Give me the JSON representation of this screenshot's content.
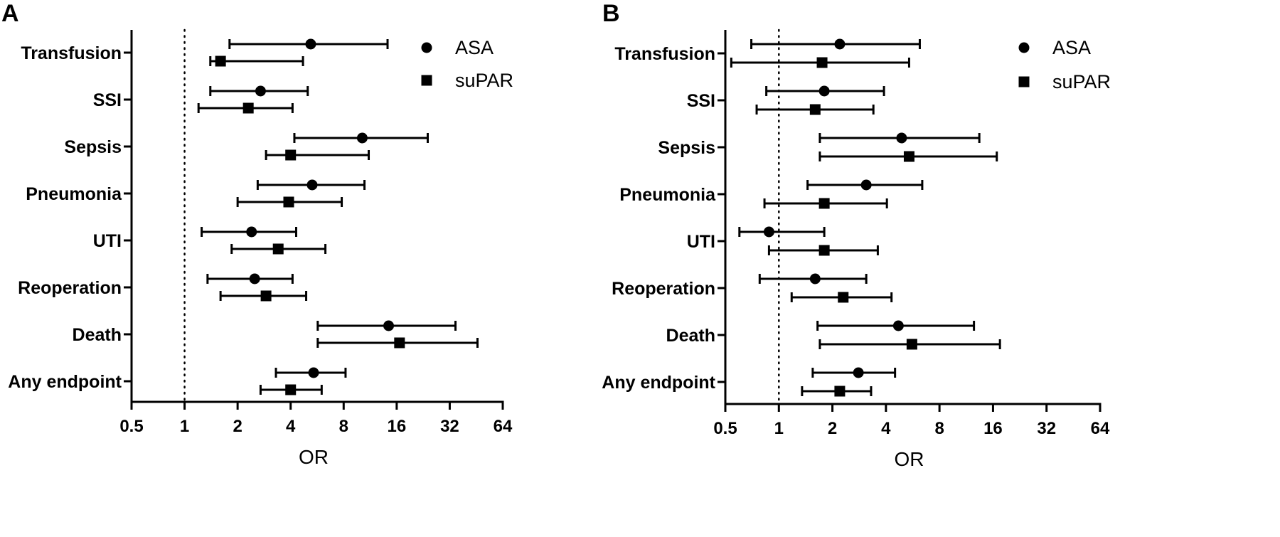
{
  "chart_data": [
    {
      "type": "forest",
      "panel": "A",
      "x_scale": "log2",
      "xlabel": "OR",
      "xlim": [
        0.5,
        64
      ],
      "xticks": [
        "0.5",
        "1",
        "2",
        "4",
        "8",
        "16",
        "32",
        "64"
      ],
      "reference_line": 1,
      "legend": {
        "placement": "top-right",
        "entries": [
          "ASA",
          "suPAR"
        ]
      },
      "categories": [
        "Transfusion",
        "SSI",
        "Sepsis",
        "Pneumonia",
        "UTI",
        "Reoperation",
        "Death",
        "Any endpoint"
      ],
      "series": [
        {
          "name": "ASA",
          "marker": "circle",
          "values": [
            5.2,
            2.7,
            10.2,
            5.3,
            2.4,
            2.5,
            14.4,
            5.4
          ],
          "ci_low": [
            1.8,
            1.4,
            4.2,
            2.6,
            1.25,
            1.35,
            5.7,
            3.3
          ],
          "ci_high": [
            14.2,
            5.0,
            24.0,
            10.5,
            4.3,
            4.1,
            34.5,
            8.2
          ]
        },
        {
          "name": "suPAR",
          "marker": "square",
          "values": [
            1.6,
            2.3,
            4.0,
            3.9,
            3.4,
            2.9,
            16.6,
            4.0
          ],
          "ci_low": [
            1.4,
            1.2,
            2.9,
            2.0,
            1.85,
            1.6,
            5.7,
            2.7
          ],
          "ci_high": [
            4.7,
            4.1,
            11.1,
            7.8,
            6.3,
            4.9,
            46.0,
            6.0
          ]
        }
      ]
    },
    {
      "type": "forest",
      "panel": "B",
      "x_scale": "log2",
      "xlabel": "OR",
      "xlim": [
        0.5,
        64
      ],
      "xticks": [
        "0.5",
        "1",
        "2",
        "4",
        "8",
        "16",
        "32",
        "64"
      ],
      "reference_line": 1,
      "legend": {
        "placement": "top-right",
        "entries": [
          "ASA",
          "suPAR"
        ]
      },
      "categories": [
        "Transfusion",
        "SSI",
        "Sepsis",
        "Pneumonia",
        "UTI",
        "Reoperation",
        "Death",
        "Any endpoint"
      ],
      "series": [
        {
          "name": "ASA",
          "marker": "circle",
          "values": [
            2.2,
            1.8,
            4.9,
            3.1,
            0.88,
            1.6,
            4.7,
            2.8
          ],
          "ci_low": [
            0.7,
            0.85,
            1.7,
            1.45,
            0.6,
            0.78,
            1.65,
            1.55
          ],
          "ci_high": [
            6.2,
            3.9,
            13.4,
            6.4,
            1.8,
            3.1,
            12.5,
            4.5
          ]
        },
        {
          "name": "suPAR",
          "marker": "square",
          "values": [
            1.75,
            1.6,
            5.4,
            1.8,
            1.8,
            2.3,
            5.6,
            2.2
          ],
          "ci_low": [
            0.54,
            0.75,
            1.7,
            0.83,
            0.88,
            1.18,
            1.7,
            1.35
          ],
          "ci_high": [
            5.4,
            3.4,
            16.8,
            4.05,
            3.6,
            4.3,
            17.5,
            3.3
          ]
        }
      ]
    }
  ]
}
